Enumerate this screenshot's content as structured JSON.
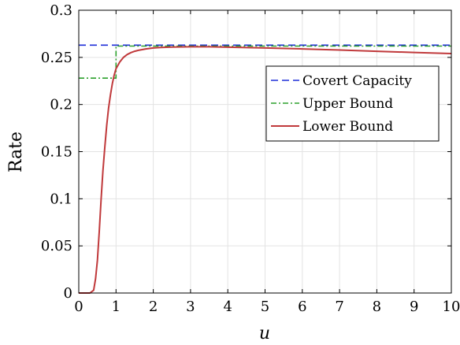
{
  "chart_data": {
    "type": "line",
    "xlabel": "u",
    "ylabel": "Rate",
    "xlim": [
      0,
      10
    ],
    "ylim": [
      0,
      0.3
    ],
    "xticks": [
      0,
      1,
      2,
      3,
      4,
      5,
      6,
      7,
      8,
      9,
      10
    ],
    "xtick_labels": [
      "0",
      "1",
      "2",
      "3",
      "4",
      "5",
      "6",
      "7",
      "8",
      "9",
      "10"
    ],
    "yticks": [
      0,
      0.05,
      0.1,
      0.15,
      0.2,
      0.25,
      0.3
    ],
    "ytick_labels": [
      "0",
      "0.05",
      "0.1",
      "0.15",
      "0.2",
      "0.25",
      "0.3"
    ],
    "grid": true,
    "legend_position": "upper-right",
    "series": [
      {
        "name": "Covert Capacity",
        "color": "#1f2fd8",
        "style": "dashed",
        "x": [
          0,
          10
        ],
        "y": [
          0.263,
          0.263
        ]
      },
      {
        "name": "Upper Bound",
        "color": "#2ca02c",
        "style": "dashdot",
        "x": [
          0,
          1,
          1,
          1.5,
          2,
          3,
          4,
          5,
          6,
          7,
          8,
          9,
          10
        ],
        "y": [
          0.228,
          0.228,
          0.262,
          0.262,
          0.262,
          0.262,
          0.262,
          0.262,
          0.262,
          0.262,
          0.262,
          0.262,
          0.262
        ]
      },
      {
        "name": "Lower Bound",
        "color": "#c0393b",
        "style": "solid",
        "x": [
          0,
          0.3,
          0.4,
          0.45,
          0.5,
          0.55,
          0.6,
          0.65,
          0.7,
          0.75,
          0.8,
          0.85,
          0.9,
          0.95,
          1.0,
          1.1,
          1.2,
          1.3,
          1.4,
          1.5,
          1.6,
          1.8,
          2.0,
          2.2,
          2.5,
          3.0,
          3.5,
          4.0,
          5.0,
          6.0,
          7.0,
          8.0,
          9.0,
          10.0
        ],
        "y": [
          0,
          0,
          0.003,
          0.015,
          0.035,
          0.065,
          0.1,
          0.13,
          0.155,
          0.178,
          0.196,
          0.21,
          0.222,
          0.231,
          0.238,
          0.245,
          0.25,
          0.253,
          0.255,
          0.2565,
          0.2575,
          0.259,
          0.26,
          0.2605,
          0.261,
          0.2612,
          0.2612,
          0.2608,
          0.26,
          0.259,
          0.2578,
          0.2565,
          0.2552,
          0.254
        ]
      }
    ]
  }
}
